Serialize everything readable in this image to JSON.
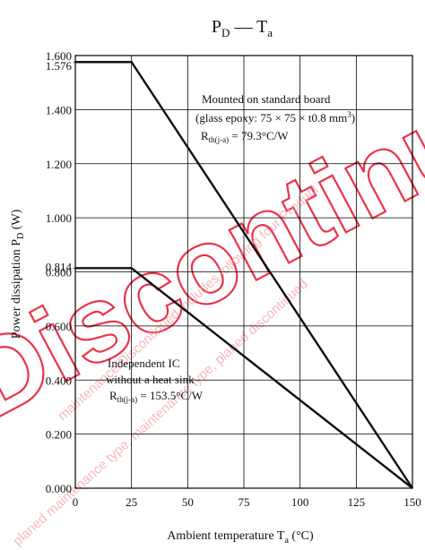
{
  "chart_data": {
    "type": "line",
    "title": "P",
    "title_sub_1": "D",
    "title_dash": " — ",
    "title_2": "T",
    "title_sub_2": "a",
    "xlabel_main": "Ambient temperature  T",
    "xlabel_sub": "a",
    "xlabel_unit": "  (°C)",
    "ylabel_main": "Power dissipation  P",
    "ylabel_sub": "D",
    "ylabel_unit": "  (W)",
    "xlim": [
      0,
      150
    ],
    "ylim": [
      0,
      1.6
    ],
    "xticks": [
      0,
      25,
      50,
      75,
      100,
      125,
      150
    ],
    "xtick_labels": [
      "0",
      "25",
      "50",
      "75",
      "100",
      "125",
      "150"
    ],
    "yticks": [
      0,
      0.2,
      0.4,
      0.6,
      0.8,
      1.0,
      1.2,
      1.4,
      1.6
    ],
    "ytick_labels": [
      "0.000",
      "0.200",
      "0.400",
      "0.600",
      "0.800",
      "1.000",
      "1.200",
      "1.400",
      "1.600"
    ],
    "extra_yticks": [
      1.576,
      0.814
    ],
    "extra_ytick_labels": [
      "1.576",
      "0.814"
    ],
    "grid": true,
    "series": [
      {
        "x": [
          0,
          25,
          150
        ],
        "y": [
          1.576,
          1.576,
          0
        ]
      },
      {
        "x": [
          0,
          25,
          150
        ],
        "y": [
          0.814,
          0.814,
          0
        ]
      }
    ],
    "annotations": {
      "board_line1": "Mounted on standard board",
      "board_line2": "(glass epoxy: 75 × 75 × t0.8 mm",
      "board_line2_sup": "3",
      "board_line2_end": ")",
      "board_line3_main": "R",
      "board_line3_sub": "th(j-a)",
      "board_line3_val": " = 79.3°C/W",
      "ic_line1": "Independent IC",
      "ic_line2": "without a heat sink",
      "ic_line3_main": "R",
      "ic_line3_sub": "th(j-a)",
      "ic_line3_val": " = 153.5°C/W"
    }
  },
  "watermark": {
    "big_text": "Discontinued",
    "small_text_1": "maintenance/Discontinued includes following four Product",
    "small_text_2": "planed maintenance type, maintenance type, planed discontinued",
    "color": "#e8102a"
  }
}
